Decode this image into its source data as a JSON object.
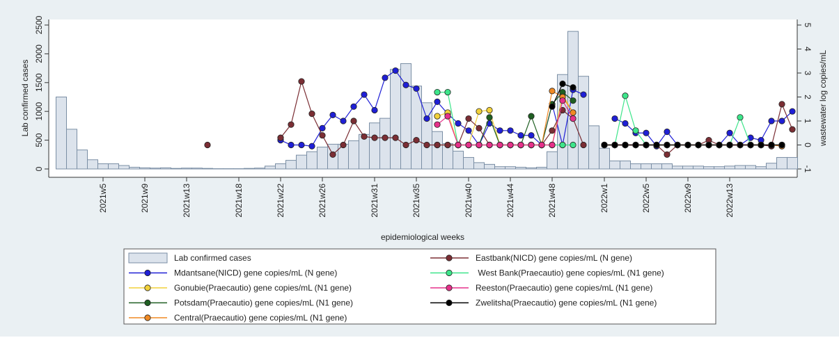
{
  "chart_data": {
    "type": "combo",
    "xlabel": "epidemiological weeks",
    "ylabel": "Lab confirmed cases",
    "y2label": "wastewater log copies/mL",
    "categories": [
      null,
      null,
      null,
      null,
      "2021w5",
      null,
      null,
      null,
      "2021w9",
      null,
      null,
      null,
      "2021w13",
      null,
      null,
      null,
      null,
      "2021w18",
      null,
      null,
      null,
      "2021w22",
      null,
      null,
      null,
      "2021w26",
      null,
      null,
      null,
      null,
      "2021w31",
      null,
      null,
      null,
      "2021w35",
      null,
      null,
      null,
      null,
      "2021w40",
      null,
      null,
      null,
      "2021w44",
      null,
      null,
      null,
      "2021w48",
      null,
      null,
      null,
      null,
      "2022w1",
      null,
      null,
      null,
      "2022w5",
      null,
      null,
      null,
      "2022w9",
      null,
      null,
      null,
      "2022w13",
      null,
      null,
      null,
      null,
      null,
      null
    ],
    "ylim": [
      0,
      2500
    ],
    "yticks": [
      0,
      500,
      1000,
      1500,
      2000,
      2500
    ],
    "y2lim": [
      -1,
      5
    ],
    "y2ticks": [
      -1,
      0,
      1,
      2,
      3,
      4,
      5
    ],
    "series": [
      {
        "name": "Lab confirmed cases",
        "type": "bar",
        "color": "#dce3ec",
        "values": [
          1250,
          690,
          330,
          160,
          90,
          90,
          60,
          30,
          20,
          15,
          20,
          10,
          15,
          15,
          10,
          5,
          5,
          5,
          10,
          15,
          50,
          90,
          150,
          240,
          300,
          380,
          430,
          430,
          490,
          600,
          800,
          880,
          1730,
          1830,
          1440,
          1150,
          650,
          440,
          310,
          200,
          110,
          80,
          40,
          40,
          30,
          20,
          30,
          300,
          1640,
          2390,
          1610,
          750,
          360,
          140,
          140,
          90,
          90,
          90,
          90,
          50,
          50,
          50,
          40,
          40,
          50,
          60,
          60,
          40,
          100,
          200,
          200
        ]
      },
      {
        "name": "Mdantsane(NICD) gene copies/mL (N gene)",
        "type": "line",
        "axis": "y2",
        "color": "#1f1fd6",
        "values": [
          null,
          null,
          null,
          null,
          null,
          null,
          null,
          null,
          null,
          null,
          null,
          null,
          null,
          null,
          null,
          null,
          null,
          null,
          null,
          null,
          null,
          0.2,
          0,
          0,
          -0.05,
          0.7,
          1.25,
          1.0,
          1.6,
          2.1,
          1.45,
          2.8,
          3.1,
          2.5,
          2.35,
          1.1,
          1.8,
          1.3,
          0.9,
          0.6,
          0,
          0.9,
          0.6,
          0.6,
          0.4,
          0.4,
          0,
          1.7,
          0,
          2.3,
          2.1,
          null,
          null,
          1.1,
          0.9,
          0.5,
          0.5,
          -0.05,
          0.55,
          0,
          0,
          0,
          0,
          0,
          0.5,
          0,
          0.3,
          0.2,
          1.0,
          1.0,
          1.4
        ]
      },
      {
        "name": "Gonubie(Praecautio) gene copies/mL (N1 gene)",
        "type": "line",
        "axis": "y2",
        "color": "#f2d13a",
        "values": [
          null,
          null,
          null,
          null,
          null,
          null,
          null,
          null,
          null,
          null,
          null,
          null,
          null,
          null,
          null,
          null,
          null,
          null,
          null,
          null,
          null,
          null,
          null,
          null,
          null,
          null,
          null,
          null,
          null,
          null,
          null,
          null,
          null,
          null,
          null,
          null,
          1.2,
          1.35,
          0,
          0,
          1.4,
          1.45,
          0,
          0,
          0,
          0,
          0,
          0,
          2.1,
          1.35,
          null,
          null,
          0,
          0,
          0,
          0,
          0,
          0,
          0,
          0,
          0,
          0,
          0,
          0,
          0,
          0,
          0,
          0,
          0,
          0,
          null
        ]
      },
      {
        "name": "Potsdam(Praecautio) gene copies/mL (N1 gene)",
        "type": "line",
        "axis": "y2",
        "color": "#1f5f22",
        "values": [
          null,
          null,
          null,
          null,
          null,
          null,
          null,
          null,
          null,
          null,
          null,
          null,
          null,
          null,
          null,
          null,
          null,
          null,
          null,
          null,
          null,
          null,
          null,
          null,
          null,
          null,
          null,
          null,
          null,
          null,
          null,
          null,
          null,
          null,
          null,
          null,
          null,
          null,
          0,
          0,
          0,
          1.15,
          0,
          0,
          0,
          1.2,
          0,
          1.7,
          2.2,
          1.85,
          null,
          null,
          0,
          0,
          0,
          0,
          0,
          0,
          0,
          0,
          0,
          0,
          0,
          0,
          0,
          0,
          0,
          0,
          0,
          0,
          null
        ]
      },
      {
        "name": "Central(Praecautio) gene copies/mL (N1 gene)",
        "type": "line",
        "axis": "y2",
        "color": "#f08a24",
        "values": [
          null,
          null,
          null,
          null,
          null,
          null,
          null,
          null,
          null,
          null,
          null,
          null,
          null,
          null,
          null,
          null,
          null,
          null,
          null,
          null,
          null,
          null,
          null,
          null,
          null,
          null,
          null,
          null,
          null,
          null,
          null,
          null,
          null,
          null,
          null,
          null,
          0,
          0,
          0,
          0,
          0,
          0,
          0,
          0,
          0,
          0,
          0,
          2.25,
          2.0,
          1.35,
          null,
          null,
          0,
          0,
          0,
          0,
          0,
          0,
          0,
          0,
          0,
          0,
          0,
          0,
          0,
          0,
          0,
          0,
          0,
          -0.05,
          null
        ]
      },
      {
        "name": "Eastbank(NICD) gene copies/mL (N gene)",
        "type": "line",
        "axis": "y2",
        "color": "#7b2e34",
        "values": [
          null,
          null,
          null,
          null,
          null,
          null,
          null,
          null,
          null,
          null,
          null,
          null,
          null,
          null,
          0,
          null,
          null,
          null,
          null,
          null,
          null,
          0.3,
          0.85,
          2.65,
          1.3,
          0.4,
          -0.4,
          0,
          1.0,
          0.35,
          0.3,
          0.3,
          0.3,
          0,
          0.2,
          0,
          0,
          0,
          0,
          1.1,
          0.7,
          0,
          0,
          0,
          0,
          0,
          0,
          0.6,
          1.45,
          1.1,
          0,
          null,
          0,
          0,
          0,
          0,
          0,
          0,
          -0.4,
          0,
          0,
          0,
          0.2,
          0,
          0,
          0,
          0,
          0,
          -0.05,
          1.7,
          0.65
        ]
      },
      {
        "name": " West Bank(Praecautio) gene copies/mL (N1 gene)",
        "type": "line",
        "axis": "y2",
        "color": "#3de58a",
        "values": [
          null,
          null,
          null,
          null,
          null,
          null,
          null,
          null,
          null,
          null,
          null,
          null,
          null,
          null,
          null,
          null,
          null,
          null,
          null,
          null,
          null,
          null,
          null,
          null,
          null,
          null,
          null,
          null,
          null,
          null,
          null,
          null,
          null,
          null,
          null,
          null,
          2.2,
          2.2,
          0,
          0,
          0,
          0,
          0,
          0,
          0,
          0,
          0,
          0,
          0,
          0,
          null,
          null,
          0,
          0,
          2.05,
          0.6,
          0,
          0,
          0,
          0,
          0,
          0,
          0,
          0,
          0,
          1.15,
          0,
          0,
          0,
          0,
          null
        ]
      },
      {
        "name": "Reeston(Praecautio) gene copies/mL (N1 gene)",
        "type": "line",
        "axis": "y2",
        "color": "#e6318a",
        "values": [
          null,
          null,
          null,
          null,
          null,
          null,
          null,
          null,
          null,
          null,
          null,
          null,
          null,
          null,
          null,
          null,
          null,
          null,
          null,
          null,
          null,
          null,
          null,
          null,
          null,
          null,
          null,
          null,
          null,
          null,
          null,
          null,
          null,
          null,
          null,
          null,
          0.85,
          1.2,
          0,
          0,
          0,
          0,
          0,
          0,
          0,
          0,
          0,
          0,
          1.85,
          1.1,
          null,
          null,
          0,
          0,
          0,
          0,
          0,
          0,
          0,
          0,
          0,
          0,
          0,
          0,
          0,
          0,
          0,
          0,
          0,
          0,
          null
        ]
      },
      {
        "name": "Zwelitsha(Praecautio) gene copies/mL (N1 gene)",
        "type": "line",
        "axis": "y2",
        "color": "#000000",
        "values": [
          null,
          null,
          null,
          null,
          null,
          null,
          null,
          null,
          null,
          null,
          null,
          null,
          null,
          null,
          null,
          null,
          null,
          null,
          null,
          null,
          null,
          null,
          null,
          null,
          null,
          null,
          null,
          null,
          null,
          null,
          null,
          null,
          null,
          null,
          null,
          null,
          null,
          null,
          null,
          null,
          null,
          null,
          null,
          null,
          null,
          null,
          null,
          1.6,
          2.55,
          2.4,
          null,
          null,
          0,
          0,
          0,
          0,
          0,
          0,
          0,
          0,
          0,
          0,
          0,
          0,
          0,
          0,
          0,
          0,
          0,
          0,
          null
        ]
      }
    ]
  }
}
